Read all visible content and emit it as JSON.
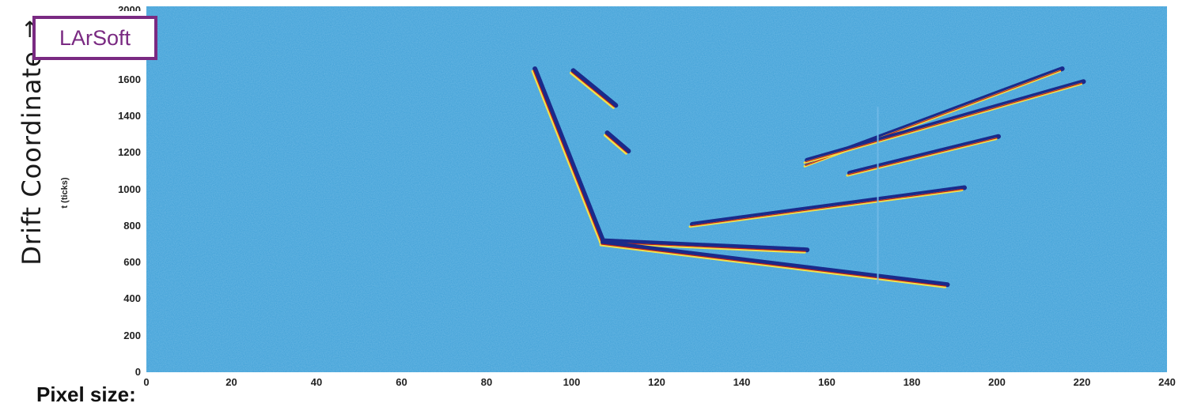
{
  "chart_data": {
    "type": "heatmap",
    "title": "",
    "xlabel": "",
    "ylabel": "t (ticks)",
    "xlim": [
      0,
      240
    ],
    "ylim": [
      0,
      2000
    ],
    "x_ticks": [
      "0",
      "20",
      "40",
      "60",
      "80",
      "100",
      "120",
      "140",
      "160",
      "180",
      "200",
      "220",
      "240"
    ],
    "y_ticks": [
      "0",
      "200",
      "400",
      "600",
      "800",
      "1000",
      "1200",
      "1400",
      "1600"
    ],
    "y_top_tick": "2000",
    "background_color": "#3d9fd6",
    "colors": {
      "low": "#1a2a8a",
      "mid": "#f2e14a",
      "high": "#c0201a"
    },
    "tracks": [
      {
        "points": [
          [
            91,
            1650
          ],
          [
            107,
            710
          ]
        ]
      },
      {
        "points": [
          [
            107,
            710
          ],
          [
            155,
            660
          ]
        ]
      },
      {
        "points": [
          [
            107,
            700
          ],
          [
            188,
            470
          ]
        ]
      },
      {
        "points": [
          [
            155,
            1130
          ],
          [
            215,
            1650
          ]
        ]
      },
      {
        "points": [
          [
            165,
            1080
          ],
          [
            200,
            1280
          ]
        ]
      },
      {
        "points": [
          [
            128,
            800
          ],
          [
            192,
            1000
          ]
        ]
      },
      {
        "points": [
          [
            155,
            1150
          ],
          [
            220,
            1580
          ]
        ]
      },
      {
        "points": [
          [
            100,
            1640
          ],
          [
            110,
            1450
          ]
        ]
      },
      {
        "points": [
          [
            108,
            1300
          ],
          [
            113,
            1200
          ]
        ]
      }
    ],
    "vertical_artifact_x": 172
  },
  "annotations": {
    "logo_text": "LArSoft",
    "side_label": "Drift Coordinate",
    "side_arrow": "→",
    "bottom_label": "Pixel size:"
  }
}
